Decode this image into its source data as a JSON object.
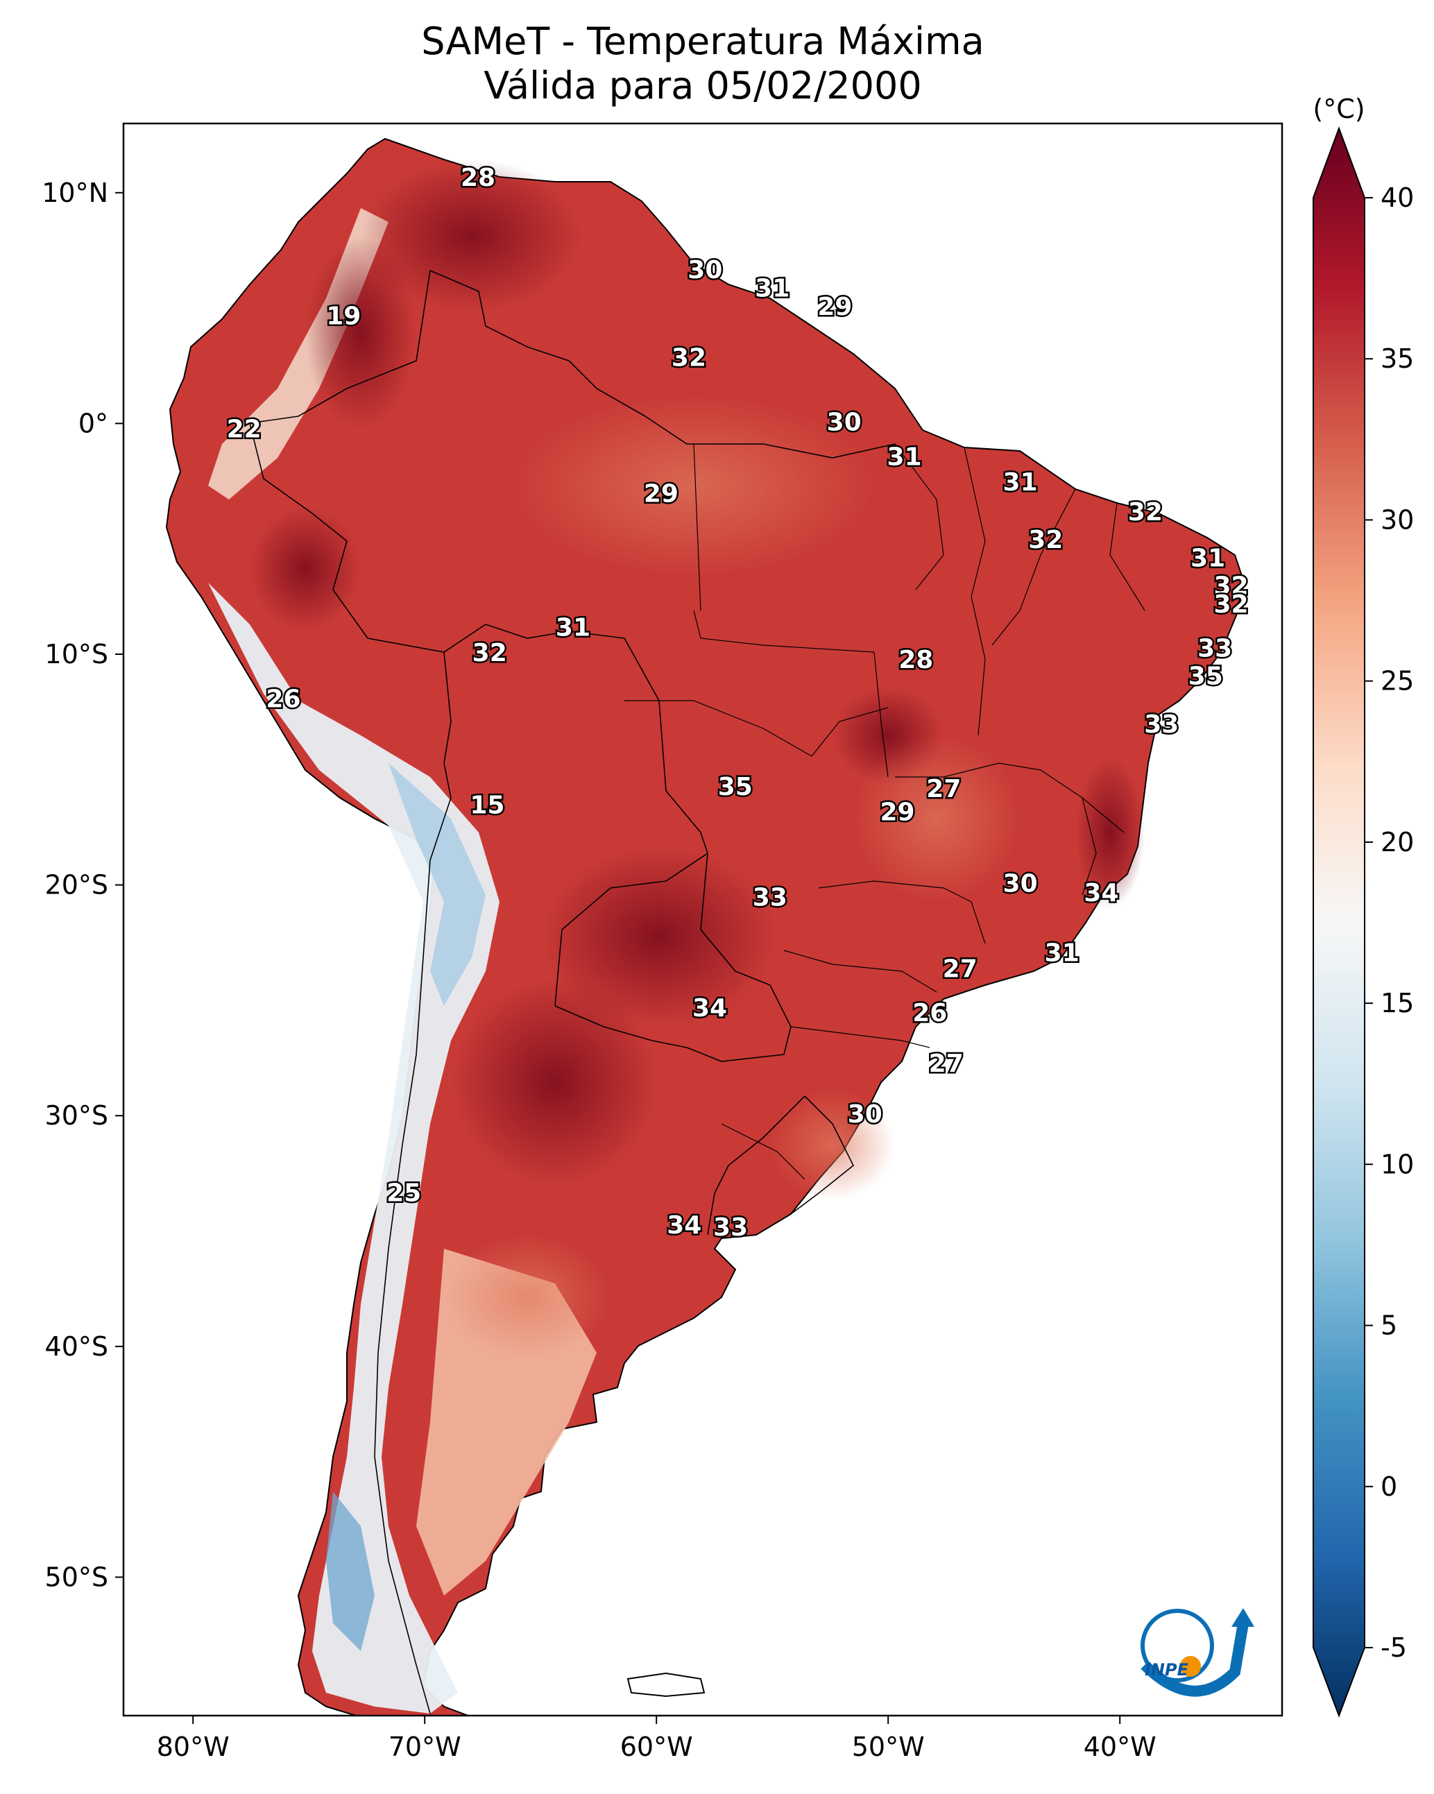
{
  "title": {
    "line1": "SAMeT - Temperatura Máxima",
    "line2": "Válida para 05/02/2000"
  },
  "axes": {
    "lon_ticks": [
      "80°W",
      "70°W",
      "60°W",
      "50°W",
      "40°W"
    ],
    "lat_ticks": [
      "10°N",
      "0°",
      "10°S",
      "20°S",
      "30°S",
      "40°S",
      "50°S"
    ],
    "extent": {
      "lon_min": -83,
      "lon_max": -33,
      "lat_min": -56,
      "lat_max": 13
    }
  },
  "colorbar": {
    "unit": "(°C)",
    "ticks": [
      "40",
      "35",
      "30",
      "25",
      "20",
      "15",
      "10",
      "5",
      "0",
      "-5"
    ],
    "range": [
      -5,
      40
    ],
    "colors": [
      "#053061",
      "#2166ac",
      "#4393c3",
      "#92c5de",
      "#d1e5f0",
      "#f7f7f7",
      "#fddbc7",
      "#f4a582",
      "#d6604d",
      "#b2182b",
      "#67001f"
    ]
  },
  "contour_labels": [
    {
      "value": "28",
      "lon": -67.7,
      "lat": 10.6
    },
    {
      "value": "19",
      "lon": -73.5,
      "lat": 4.6
    },
    {
      "value": "30",
      "lon": -57.9,
      "lat": 6.6
    },
    {
      "value": "31",
      "lon": -55.0,
      "lat": 5.8
    },
    {
      "value": "29",
      "lon": -52.3,
      "lat": 5.0
    },
    {
      "value": "32",
      "lon": -58.6,
      "lat": 2.8
    },
    {
      "value": "22",
      "lon": -77.8,
      "lat": -0.3
    },
    {
      "value": "30",
      "lon": -51.9,
      "lat": 0.0
    },
    {
      "value": "31",
      "lon": -49.3,
      "lat": -1.5
    },
    {
      "value": "31",
      "lon": -44.3,
      "lat": -2.6
    },
    {
      "value": "32",
      "lon": -38.9,
      "lat": -3.9
    },
    {
      "value": "29",
      "lon": -59.8,
      "lat": -3.1
    },
    {
      "value": "32",
      "lon": -43.2,
      "lat": -5.1
    },
    {
      "value": "31",
      "lon": -36.2,
      "lat": -5.9
    },
    {
      "value": "32",
      "lon": -35.2,
      "lat": -7.1
    },
    {
      "value": "32",
      "lon": -35.2,
      "lat": -7.9
    },
    {
      "value": "31",
      "lon": -63.6,
      "lat": -8.9
    },
    {
      "value": "32",
      "lon": -67.2,
      "lat": -10.0
    },
    {
      "value": "28",
      "lon": -48.8,
      "lat": -10.3
    },
    {
      "value": "33",
      "lon": -35.9,
      "lat": -9.8
    },
    {
      "value": "35",
      "lon": -36.3,
      "lat": -11.0
    },
    {
      "value": "26",
      "lon": -76.1,
      "lat": -12.0
    },
    {
      "value": "33",
      "lon": -38.2,
      "lat": -13.1
    },
    {
      "value": "27",
      "lon": -47.6,
      "lat": -15.9
    },
    {
      "value": "35",
      "lon": -56.6,
      "lat": -15.8
    },
    {
      "value": "29",
      "lon": -49.6,
      "lat": -16.9
    },
    {
      "value": "15",
      "lon": -67.3,
      "lat": -16.6
    },
    {
      "value": "30",
      "lon": -44.3,
      "lat": -20.0
    },
    {
      "value": "34",
      "lon": -40.8,
      "lat": -20.4
    },
    {
      "value": "33",
      "lon": -55.1,
      "lat": -20.6
    },
    {
      "value": "31",
      "lon": -42.5,
      "lat": -23.0
    },
    {
      "value": "27",
      "lon": -46.9,
      "lat": -23.7
    },
    {
      "value": "34",
      "lon": -57.7,
      "lat": -25.4
    },
    {
      "value": "26",
      "lon": -48.2,
      "lat": -25.6
    },
    {
      "value": "27",
      "lon": -47.5,
      "lat": -27.8
    },
    {
      "value": "30",
      "lon": -51.0,
      "lat": -30.0
    },
    {
      "value": "25",
      "lon": -70.9,
      "lat": -33.4
    },
    {
      "value": "34",
      "lon": -58.8,
      "lat": -34.8
    },
    {
      "value": "33",
      "lon": -56.8,
      "lat": -34.9
    }
  ],
  "logo": {
    "text": "INPE"
  }
}
